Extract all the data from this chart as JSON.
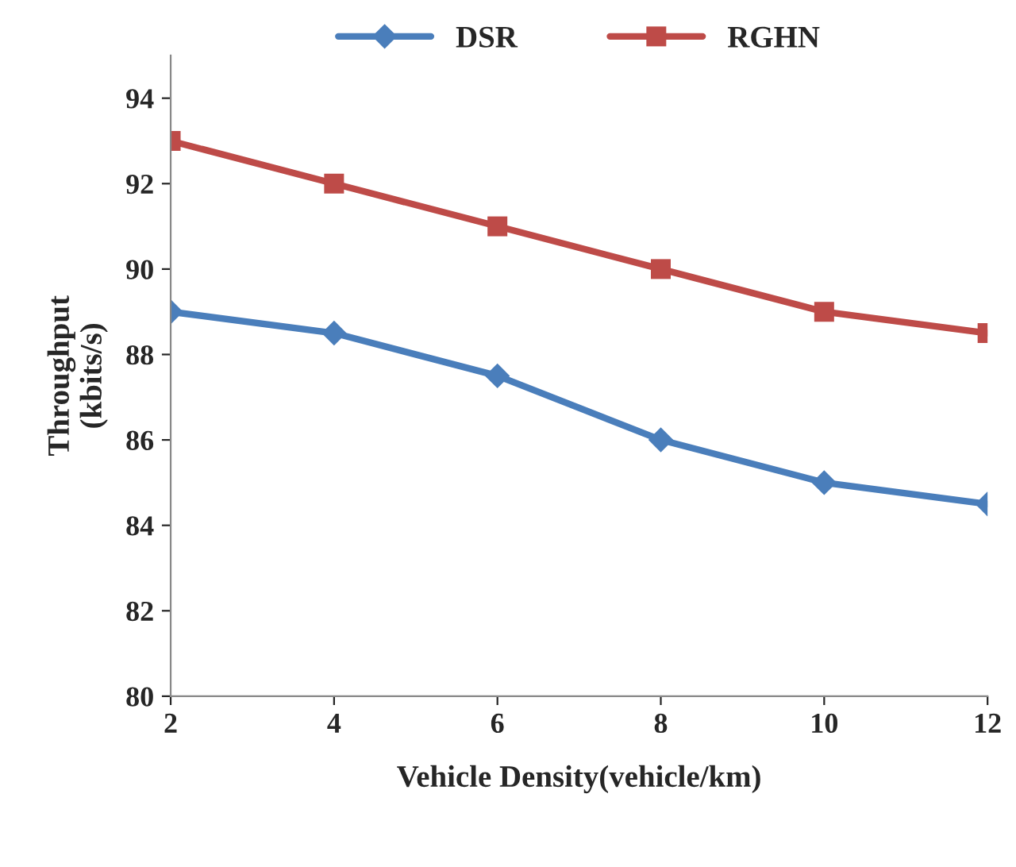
{
  "chart_data": {
    "type": "line",
    "xlabel": "Vehicle Density(vehicle/km)",
    "ylabel": "Throughput\n(kbits/s)",
    "x": [
      2,
      4,
      6,
      8,
      10,
      12
    ],
    "series": [
      {
        "name": "DSR",
        "color": "#4a7ebb",
        "marker": "diamond",
        "values": [
          89,
          88.5,
          87.5,
          86,
          85,
          84.5
        ]
      },
      {
        "name": "RGHN",
        "color": "#be4b48",
        "marker": "square",
        "values": [
          93,
          92,
          91,
          90,
          89,
          88.5
        ]
      }
    ],
    "xlim": [
      2,
      12
    ],
    "xticks": [
      2,
      4,
      6,
      8,
      10,
      12
    ],
    "ylim": [
      80,
      95
    ],
    "yticks": [
      80,
      82,
      84,
      86,
      88,
      90,
      92,
      94
    ],
    "grid": false,
    "legend": "top",
    "line_style": "solid"
  }
}
